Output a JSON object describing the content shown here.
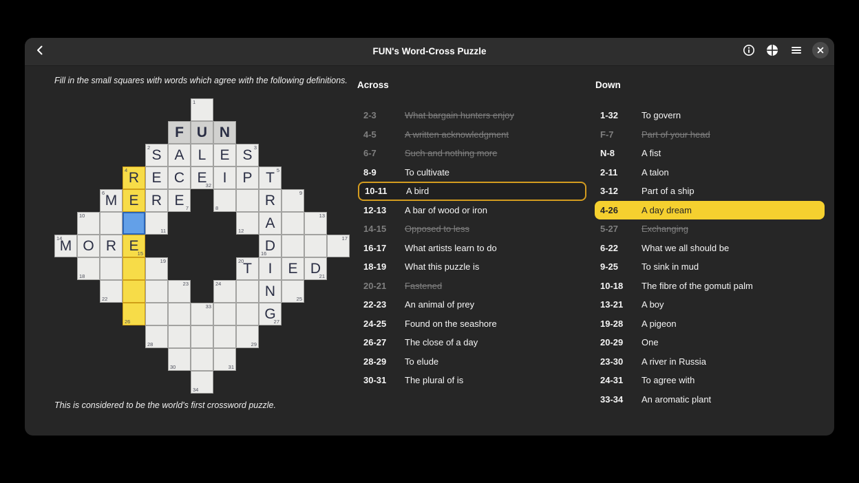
{
  "window": {
    "title": "FUN's Word-Cross Puzzle"
  },
  "header": {
    "icons": [
      "back",
      "info",
      "puzzle-overview",
      "menu",
      "close"
    ]
  },
  "instructions": "Fill in the small squares with words which agree with the following definitions.",
  "footnote": "This is considered to be the world's first crossword puzzle.",
  "across": {
    "label": "Across",
    "clues": [
      {
        "range": "2-3",
        "text": "What bargain hunters enjoy",
        "state": "solved"
      },
      {
        "range": "4-5",
        "text": "A written acknowledgment",
        "state": "solved"
      },
      {
        "range": "6-7",
        "text": "Such and nothing more",
        "state": "solved"
      },
      {
        "range": "8-9",
        "text": "To cultivate",
        "state": ""
      },
      {
        "range": "10-11",
        "text": "A bird",
        "state": "selected-outline"
      },
      {
        "range": "12-13",
        "text": "A bar of wood or iron",
        "state": ""
      },
      {
        "range": "14-15",
        "text": "Opposed to less",
        "state": "solved"
      },
      {
        "range": "16-17",
        "text": "What artists learn to do",
        "state": ""
      },
      {
        "range": "18-19",
        "text": "What this puzzle is",
        "state": ""
      },
      {
        "range": "20-21",
        "text": "Fastened",
        "state": "solved"
      },
      {
        "range": "22-23",
        "text": "An animal of prey",
        "state": ""
      },
      {
        "range": "24-25",
        "text": "Found on the seashore",
        "state": ""
      },
      {
        "range": "26-27",
        "text": "The close of a day",
        "state": ""
      },
      {
        "range": "28-29",
        "text": "To elude",
        "state": ""
      },
      {
        "range": "30-31",
        "text": "The plural of is",
        "state": ""
      }
    ]
  },
  "down": {
    "label": "Down",
    "clues": [
      {
        "range": "1-32",
        "text": "To govern",
        "state": ""
      },
      {
        "range": "F-7",
        "text": "Part of your head",
        "state": "solved"
      },
      {
        "range": "N-8",
        "text": "A fist",
        "state": ""
      },
      {
        "range": "2-11",
        "text": "A talon",
        "state": ""
      },
      {
        "range": "3-12",
        "text": "Part of a ship",
        "state": ""
      },
      {
        "range": "4-26",
        "text": "A day dream",
        "state": "selected-fill"
      },
      {
        "range": "5-27",
        "text": "Exchanging",
        "state": "solved"
      },
      {
        "range": "6-22",
        "text": "What we all should be",
        "state": ""
      },
      {
        "range": "9-25",
        "text": "To sink in mud",
        "state": ""
      },
      {
        "range": "10-18",
        "text": "The fibre of the gomuti palm",
        "state": ""
      },
      {
        "range": "13-21",
        "text": "A boy",
        "state": ""
      },
      {
        "range": "19-28",
        "text": "A pigeon",
        "state": ""
      },
      {
        "range": "20-29",
        "text": "One",
        "state": ""
      },
      {
        "range": "23-30",
        "text": "A river in Russia",
        "state": ""
      },
      {
        "range": "24-31",
        "text": "To agree with",
        "state": ""
      },
      {
        "range": "33-34",
        "text": "An aromatic plant",
        "state": ""
      }
    ]
  },
  "grid": {
    "cell_size": 33,
    "cell_fields": [
      "row",
      "col",
      "letter",
      "number",
      "number_corner",
      "state"
    ],
    "cells": [
      [
        0,
        6,
        "",
        "1",
        "tl",
        ""
      ],
      [
        1,
        5,
        "F",
        "",
        "",
        "given"
      ],
      [
        1,
        6,
        "U",
        "",
        "",
        "given"
      ],
      [
        1,
        7,
        "N",
        "",
        "",
        "given"
      ],
      [
        2,
        4,
        "S",
        "2",
        "tl",
        ""
      ],
      [
        2,
        5,
        "A",
        "",
        "",
        ""
      ],
      [
        2,
        6,
        "L",
        "",
        "",
        ""
      ],
      [
        2,
        7,
        "E",
        "",
        "",
        ""
      ],
      [
        2,
        8,
        "S",
        "3",
        "tr",
        ""
      ],
      [
        3,
        3,
        "R",
        "4",
        "tl",
        "hl"
      ],
      [
        3,
        4,
        "E",
        "",
        "",
        ""
      ],
      [
        3,
        5,
        "C",
        "",
        "",
        ""
      ],
      [
        3,
        6,
        "E",
        "32",
        "br",
        ""
      ],
      [
        3,
        7,
        "I",
        "",
        "",
        ""
      ],
      [
        3,
        8,
        "P",
        "",
        "",
        ""
      ],
      [
        3,
        9,
        "T",
        "5",
        "tr",
        ""
      ],
      [
        4,
        2,
        "M",
        "6",
        "tl",
        ""
      ],
      [
        4,
        3,
        "E",
        "",
        "",
        "hl"
      ],
      [
        4,
        4,
        "R",
        "",
        "",
        ""
      ],
      [
        4,
        5,
        "E",
        "7",
        "br",
        ""
      ],
      [
        4,
        7,
        "",
        "8",
        "bl",
        ""
      ],
      [
        4,
        8,
        "",
        "",
        "",
        ""
      ],
      [
        4,
        9,
        "R",
        "",
        "",
        ""
      ],
      [
        4,
        10,
        "",
        "9",
        "tr",
        ""
      ],
      [
        5,
        1,
        "",
        "10",
        "tl",
        ""
      ],
      [
        5,
        2,
        "",
        "",
        "",
        ""
      ],
      [
        5,
        3,
        "",
        "",
        "",
        "cursor"
      ],
      [
        5,
        4,
        "",
        "11",
        "br",
        ""
      ],
      [
        5,
        8,
        "",
        "12",
        "bl",
        ""
      ],
      [
        5,
        9,
        "A",
        "",
        "",
        ""
      ],
      [
        5,
        10,
        "",
        "",
        "",
        ""
      ],
      [
        5,
        11,
        "",
        "13",
        "tr",
        ""
      ],
      [
        6,
        0,
        "M",
        "14",
        "tl",
        ""
      ],
      [
        6,
        1,
        "O",
        "",
        "",
        ""
      ],
      [
        6,
        2,
        "R",
        "",
        "",
        ""
      ],
      [
        6,
        3,
        "E",
        "15",
        "br",
        "hl"
      ],
      [
        6,
        9,
        "D",
        "16",
        "bl",
        ""
      ],
      [
        6,
        10,
        "",
        "",
        "",
        ""
      ],
      [
        6,
        11,
        "",
        "",
        "",
        ""
      ],
      [
        6,
        12,
        "",
        "17",
        "tr",
        ""
      ],
      [
        7,
        1,
        "",
        "18",
        "bl",
        ""
      ],
      [
        7,
        2,
        "",
        "",
        "",
        ""
      ],
      [
        7,
        3,
        "",
        "",
        "",
        "hl"
      ],
      [
        7,
        4,
        "",
        "19",
        "tr",
        ""
      ],
      [
        7,
        8,
        "T",
        "20",
        "tl",
        ""
      ],
      [
        7,
        9,
        "I",
        "",
        "",
        ""
      ],
      [
        7,
        10,
        "E",
        "",
        "",
        ""
      ],
      [
        7,
        11,
        "D",
        "21",
        "br",
        ""
      ],
      [
        8,
        2,
        "",
        "22",
        "bl",
        ""
      ],
      [
        8,
        3,
        "",
        "",
        "",
        "hl"
      ],
      [
        8,
        4,
        "",
        "",
        "",
        ""
      ],
      [
        8,
        5,
        "",
        "23",
        "tr",
        ""
      ],
      [
        8,
        7,
        "",
        "24",
        "tl",
        ""
      ],
      [
        8,
        8,
        "",
        "",
        "",
        ""
      ],
      [
        8,
        9,
        "N",
        "",
        "",
        ""
      ],
      [
        8,
        10,
        "",
        "25",
        "br",
        ""
      ],
      [
        9,
        3,
        "",
        "26",
        "bl",
        "hl"
      ],
      [
        9,
        4,
        "",
        "",
        "",
        ""
      ],
      [
        9,
        5,
        "",
        "",
        "",
        ""
      ],
      [
        9,
        6,
        "",
        "33",
        "tr",
        ""
      ],
      [
        9,
        7,
        "",
        "",
        "",
        ""
      ],
      [
        9,
        8,
        "",
        "",
        "",
        ""
      ],
      [
        9,
        9,
        "G",
        "27",
        "br",
        ""
      ],
      [
        10,
        4,
        "",
        "28",
        "bl",
        ""
      ],
      [
        10,
        5,
        "",
        "",
        "",
        ""
      ],
      [
        10,
        6,
        "",
        "",
        "",
        ""
      ],
      [
        10,
        7,
        "",
        "",
        "",
        ""
      ],
      [
        10,
        8,
        "",
        "29",
        "br",
        ""
      ],
      [
        11,
        5,
        "",
        "30",
        "bl",
        ""
      ],
      [
        11,
        6,
        "",
        "",
        "",
        ""
      ],
      [
        11,
        7,
        "",
        "31",
        "br",
        ""
      ],
      [
        12,
        6,
        "",
        "34",
        "bl",
        ""
      ]
    ]
  },
  "colors": {
    "window_bg": "#262626",
    "header_bg": "#2e2e2e",
    "cell_bg": "#ececea",
    "given_cell_bg": "#d1d1cf",
    "highlight_cell_bg": "#f7dc48",
    "cursor_cell_bg": "#63a0e8",
    "cursor_cell_border": "#2b66b8",
    "selected_clue_fill": "#f5d02f",
    "selected_clue_outline": "#d49c1f",
    "solved_clue_color": "#7f7f7f",
    "letter_color": "#2a2e44"
  }
}
